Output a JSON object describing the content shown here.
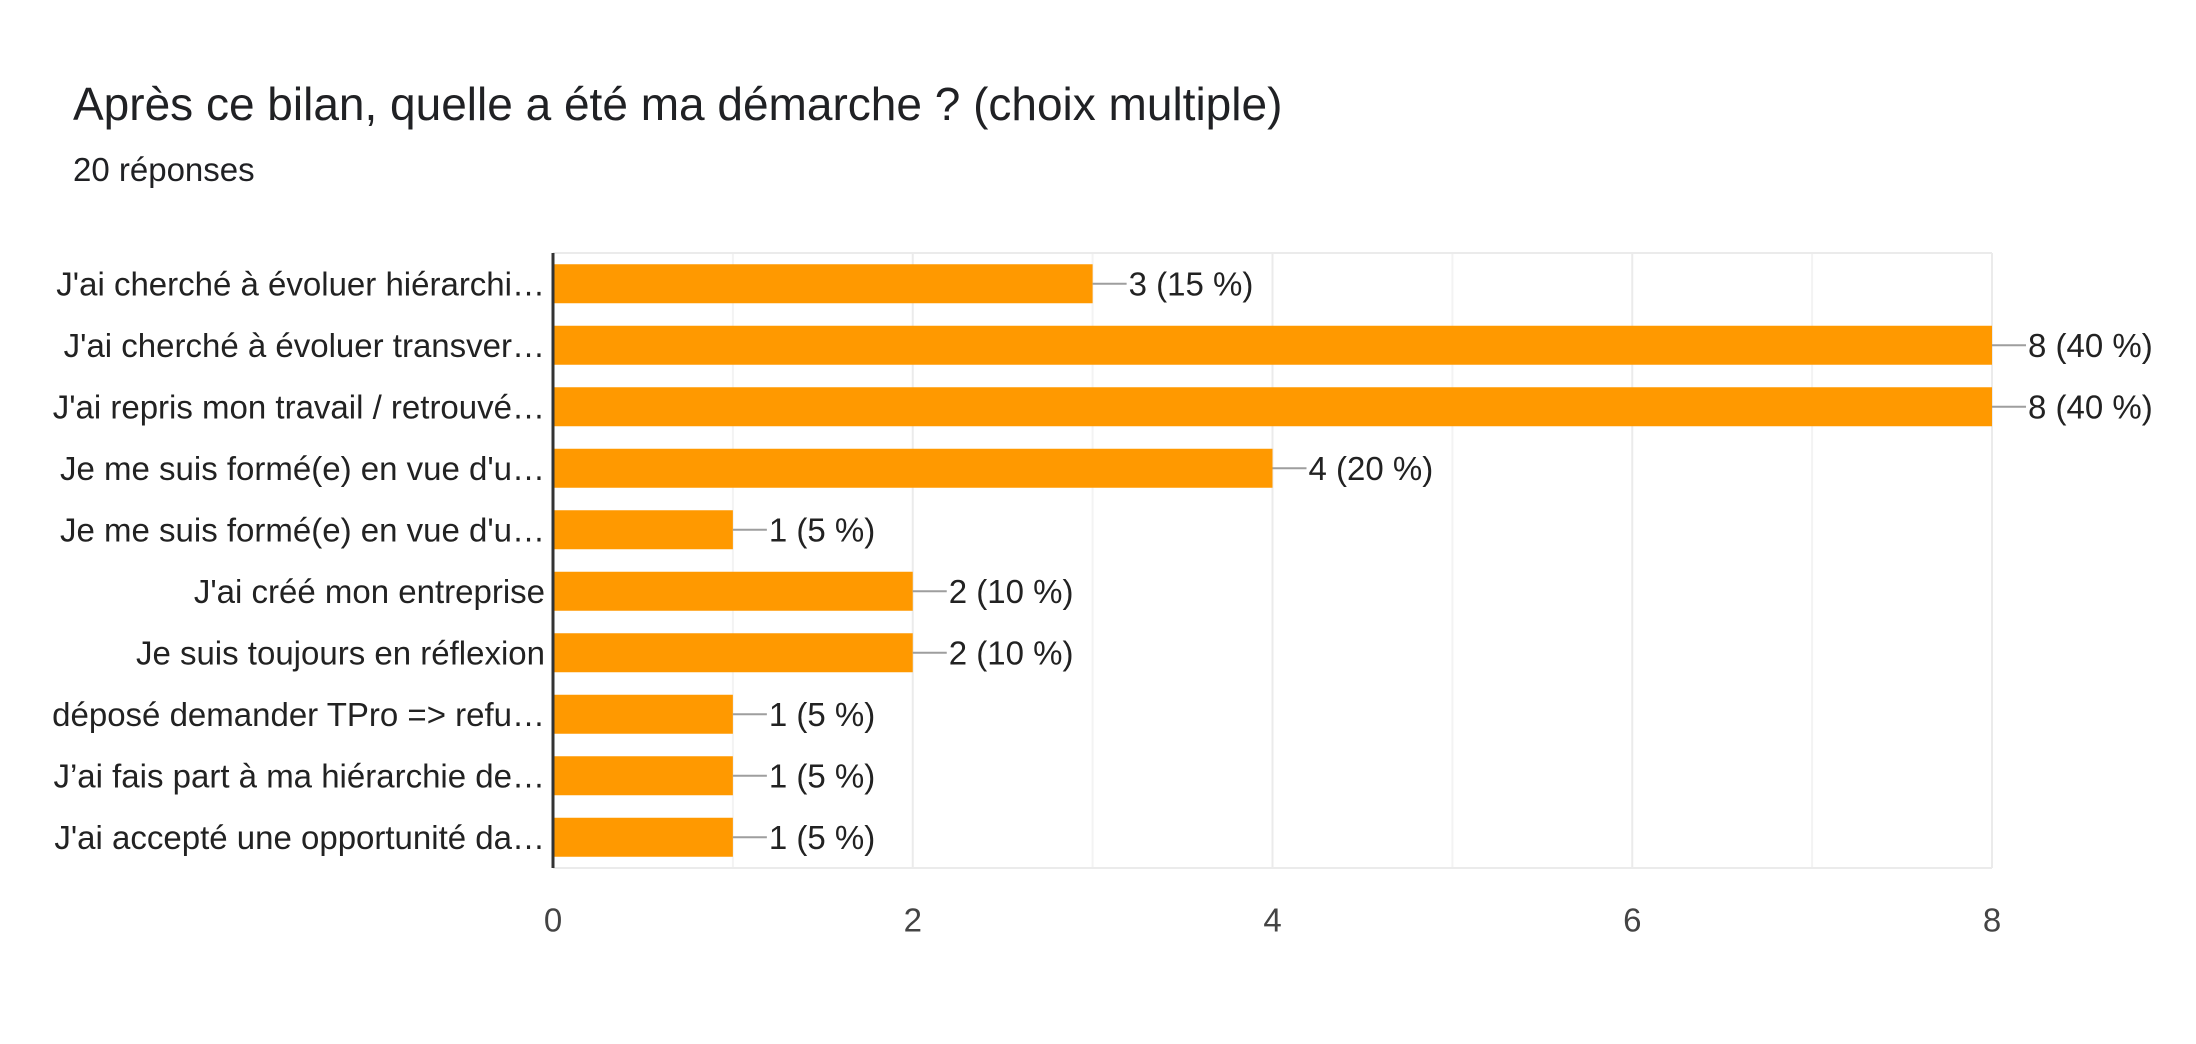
{
  "question": {
    "title": "Après ce bilan, quelle a été ma démarche ? (choix multiple)",
    "response_count": "20 réponses"
  },
  "colors": {
    "bar": "#ff9900",
    "grid": "#ebebeb",
    "axis": "#333333",
    "leader": "#9e9e9e",
    "text": "#222222",
    "tick_text": "#444444"
  },
  "chart_data": {
    "type": "bar",
    "orientation": "horizontal",
    "categories": [
      "J'ai cherché à évoluer hiérarchi…",
      "J'ai cherché à évoluer transver…",
      "J'ai repris mon travail / retrouvé…",
      "Je me suis formé(e) en vue d'u…",
      "Je me suis formé(e) en vue d'u…",
      "J'ai créé mon entreprise",
      "Je suis toujours en réflexion",
      "déposé demander TPro => refu…",
      "J’ai fais part à ma hiérarchie de…",
      "J'ai accepté une opportunité da…"
    ],
    "values": [
      3,
      8,
      8,
      4,
      1,
      2,
      2,
      1,
      1,
      1
    ],
    "value_labels": [
      "3 (15 %)",
      "8 (40 %)",
      "8 (40 %)",
      "4 (20 %)",
      "1 (5 %)",
      "2 (10 %)",
      "2 (10 %)",
      "1 (5 %)",
      "1 (5 %)",
      "1 (5 %)"
    ],
    "xlim": [
      0,
      8
    ],
    "xticks": [
      0,
      2,
      4,
      6,
      8
    ],
    "minor_gridlines": [
      1,
      3,
      5,
      7
    ],
    "grid": true,
    "legend": "none",
    "title": "",
    "xlabel": "",
    "ylabel": ""
  }
}
